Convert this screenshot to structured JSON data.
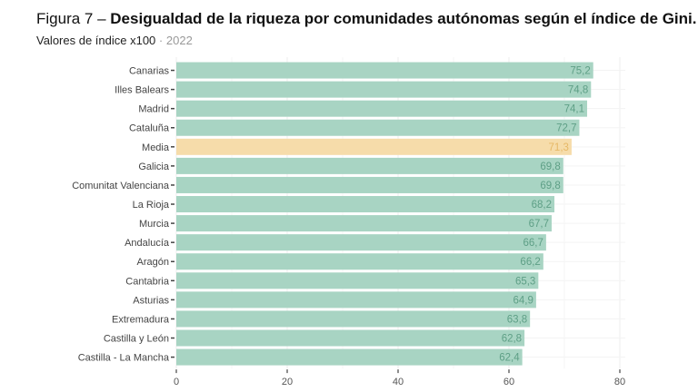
{
  "chart_data": {
    "type": "bar",
    "orientation": "horizontal",
    "title_prefix": "Figura 7 –",
    "title": "Desigualdad de la riqueza por comunidades autónomas según el índice de Gini.",
    "subtitle": "Valores de índice x100",
    "subtitle_separator": "·",
    "year": "2022",
    "categories": [
      "Canarias",
      "Illes Balears",
      "Madrid",
      "Cataluña",
      "Media",
      "Galicia",
      "Comunitat Valenciana",
      "La Rioja",
      "Murcia",
      "Andalucía",
      "Aragón",
      "Cantabria",
      "Asturias",
      "Extremadura",
      "Castilla y León",
      "Castilla - La Mancha"
    ],
    "values": [
      75.2,
      74.8,
      74.1,
      72.7,
      71.3,
      69.8,
      69.8,
      68.2,
      67.7,
      66.7,
      66.2,
      65.3,
      64.9,
      63.8,
      62.8,
      62.4
    ],
    "labels": [
      "75,2",
      "74,8",
      "74,1",
      "72,7",
      "71,3",
      "69,8",
      "69,8",
      "68,2",
      "67,7",
      "66,7",
      "66,2",
      "65,3",
      "64,9",
      "63,8",
      "62,8",
      "62,4"
    ],
    "highlight": "Media",
    "xlim": [
      0,
      80
    ],
    "xticks": [
      0,
      20,
      40,
      60,
      80
    ],
    "grid": true,
    "colors": {
      "bar": "#a8d4c3",
      "bar_label": "#5e9f86",
      "highlight_bar": "#f6dcaa",
      "highlight_label": "#e6b866"
    }
  }
}
